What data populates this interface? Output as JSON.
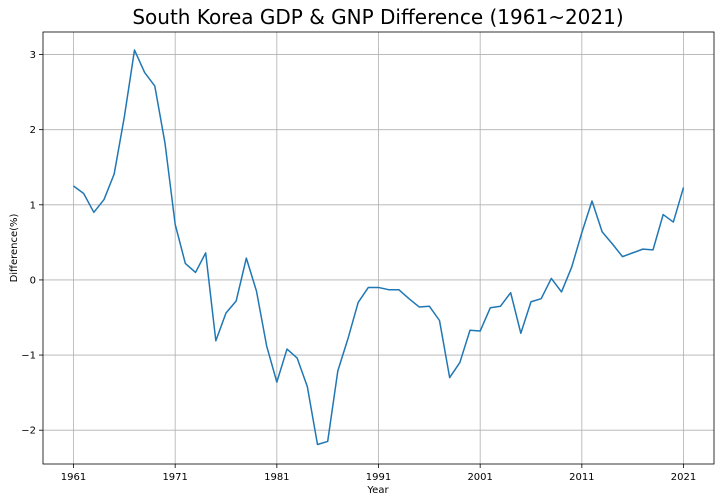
{
  "chart_data": {
    "type": "line",
    "title": "South Korea GDP & GNP Difference (1961~2021)",
    "xlabel": "Year",
    "ylabel": "Difference(%)",
    "xlim": [
      1958,
      2024
    ],
    "ylim": [
      -2.45,
      3.3
    ],
    "grid": true,
    "x_ticks": [
      1961,
      1971,
      1981,
      1991,
      2001,
      2011,
      2021
    ],
    "y_ticks": [
      -2,
      -1,
      0,
      1,
      2,
      3
    ],
    "y_tick_labels": [
      "−2",
      "−1",
      "0",
      "1",
      "2",
      "3"
    ],
    "color": "#1f77b4",
    "series": [
      {
        "name": "Difference",
        "x": [
          1961,
          1962,
          1963,
          1964,
          1965,
          1966,
          1967,
          1968,
          1969,
          1970,
          1971,
          1972,
          1973,
          1974,
          1975,
          1976,
          1977,
          1978,
          1979,
          1980,
          1981,
          1982,
          1983,
          1984,
          1985,
          1986,
          1987,
          1988,
          1989,
          1990,
          1991,
          1992,
          1993,
          1994,
          1995,
          1996,
          1997,
          1998,
          1999,
          2000,
          2001,
          2002,
          2003,
          2004,
          2005,
          2006,
          2007,
          2008,
          2009,
          2010,
          2011,
          2012,
          2013,
          2014,
          2015,
          2016,
          2017,
          2018,
          2019,
          2020,
          2021
        ],
        "values": [
          1.25,
          1.15,
          0.9,
          1.07,
          1.41,
          2.17,
          3.06,
          2.76,
          2.58,
          1.82,
          0.74,
          0.22,
          0.1,
          0.36,
          -0.81,
          -0.44,
          -0.28,
          0.29,
          -0.15,
          -0.88,
          -1.36,
          -0.92,
          -1.04,
          -1.42,
          -2.19,
          -2.15,
          -1.21,
          -0.78,
          -0.3,
          -0.1,
          -0.1,
          -0.13,
          -0.13,
          -0.25,
          -0.36,
          -0.35,
          -0.54,
          -1.3,
          -1.1,
          -0.67,
          -0.68,
          -0.37,
          -0.35,
          -0.17,
          -0.71,
          -0.29,
          -0.25,
          0.02,
          -0.16,
          0.17,
          0.63,
          1.05,
          0.64,
          0.48,
          0.31,
          0.36,
          0.41,
          0.4,
          0.87,
          0.77,
          1.23
        ]
      }
    ]
  }
}
